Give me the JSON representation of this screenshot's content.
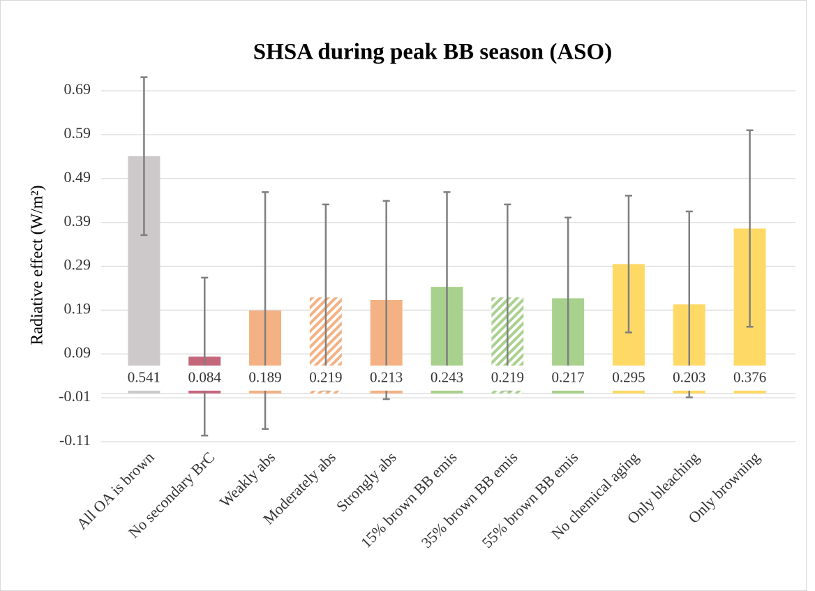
{
  "chart_data": {
    "type": "bar",
    "title": "SHSA during peak BB season (ASO)",
    "y_label": "Radiative effect (W/m²)",
    "categories": [
      "All OA is brown",
      "No secondary BrC",
      "Weakly abs",
      "Moderately abs",
      "Strongly abs",
      "15% brown BB emis",
      "35% brown BB emis",
      "55% brown BB emis",
      "No chemical aging",
      "Only bleaching",
      "Only browning"
    ],
    "values": [
      0.541,
      0.084,
      0.189,
      0.219,
      0.213,
      0.243,
      0.219,
      0.217,
      0.295,
      0.203,
      0.376
    ],
    "errors": [
      0.18,
      0.18,
      0.27,
      0.212,
      0.226,
      0.216,
      0.212,
      0.184,
      0.156,
      0.212,
      0.224
    ],
    "colors": [
      "#cdc9ca",
      "#c5677b",
      "#f4b183",
      "#f4b183",
      "#f4b183",
      "#a9d18e",
      "#a9d18e",
      "#a9d18e",
      "#ffd966",
      "#ffd966",
      "#ffd966"
    ],
    "hatched": [
      false,
      false,
      false,
      true,
      false,
      false,
      true,
      false,
      false,
      false,
      false
    ],
    "error_color": "#7f7f7f",
    "ylim": [
      -0.11,
      0.73
    ],
    "yticks": [
      -0.11,
      -0.01,
      0.09,
      0.19,
      0.29,
      0.39,
      0.49,
      0.59,
      0.69
    ],
    "grid": true
  }
}
